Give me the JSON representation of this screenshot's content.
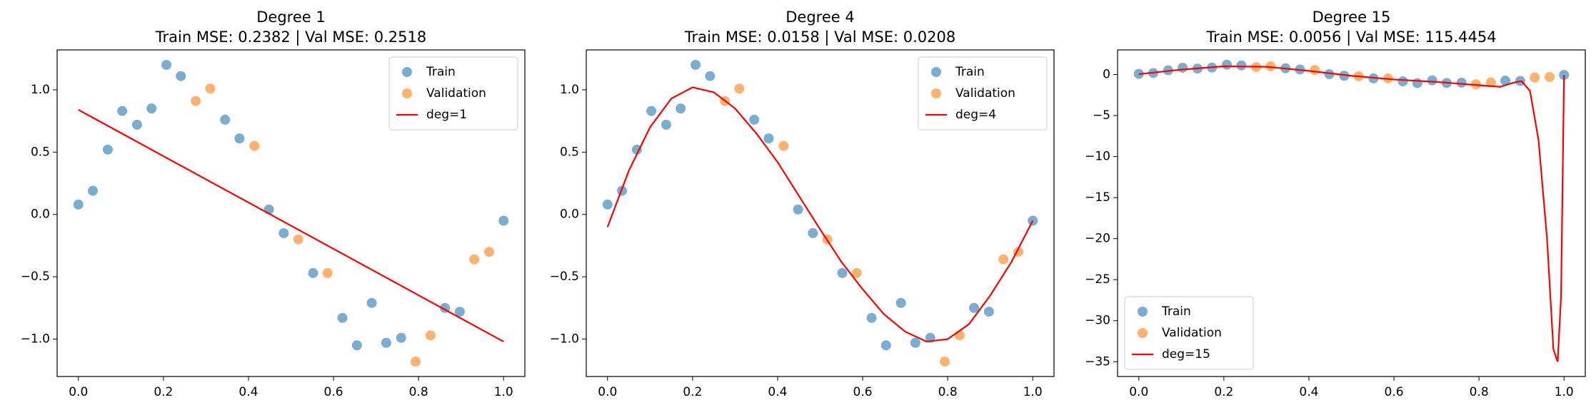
{
  "chart_data": [
    {
      "type": "scatter",
      "title": "Degree 1",
      "subtitle": "Train MSE: 0.2382 | Val MSE: 0.2518",
      "legend": "upper right",
      "xlim": [
        -0.05,
        1.05
      ],
      "ylim": [
        -1.3,
        1.32
      ],
      "xticks": [
        {
          "value": 0,
          "label": "0.0"
        },
        {
          "value": 0.2,
          "label": "0.2"
        },
        {
          "value": 0.4,
          "label": "0.4"
        },
        {
          "value": 0.6,
          "label": "0.6"
        },
        {
          "value": 0.8,
          "label": "0.8"
        },
        {
          "value": 1,
          "label": "1.0"
        }
      ],
      "yticks": [
        {
          "value": -1,
          "label": "−1.0"
        },
        {
          "value": -0.5,
          "label": "−0.5"
        },
        {
          "value": 0,
          "label": "0.0"
        },
        {
          "value": 0.5,
          "label": "0.5"
        },
        {
          "value": 1,
          "label": "1.0"
        }
      ],
      "series": [
        {
          "name": "Train",
          "type": "scatter",
          "color": "#1f77b4",
          "x": [
            0,
            0.034,
            0.069,
            0.103,
            0.138,
            0.172,
            0.207,
            0.241,
            0.345,
            0.379,
            0.448,
            0.483,
            0.552,
            0.621,
            0.655,
            0.69,
            0.724,
            0.759,
            0.862,
            0.897,
            1
          ],
          "values": [
            0.08,
            0.19,
            0.52,
            0.83,
            0.72,
            0.85,
            1.2,
            1.11,
            0.76,
            0.61,
            0.04,
            -0.15,
            -0.47,
            -0.83,
            -1.05,
            -0.71,
            -1.03,
            -0.99,
            -0.75,
            -0.78,
            -0.05
          ]
        },
        {
          "name": "Validation",
          "type": "scatter",
          "color": "#ff7f0e",
          "x": [
            0.276,
            0.31,
            0.414,
            0.517,
            0.586,
            0.793,
            0.828,
            0.931,
            0.966
          ],
          "values": [
            0.91,
            1.01,
            0.55,
            -0.2,
            -0.47,
            -1.18,
            -0.97,
            -0.36,
            -0.3
          ]
        },
        {
          "name": "deg=1",
          "type": "line",
          "color": "#ff0000",
          "x": [
            0,
            1
          ],
          "values": [
            0.84,
            -1.02
          ]
        }
      ]
    },
    {
      "type": "scatter",
      "title": "Degree 4",
      "subtitle": "Train MSE: 0.0158 | Val MSE: 0.0208",
      "legend": "upper right",
      "xlim": [
        -0.05,
        1.05
      ],
      "ylim": [
        -1.3,
        1.32
      ],
      "xticks": [
        {
          "value": 0,
          "label": "0.0"
        },
        {
          "value": 0.2,
          "label": "0.2"
        },
        {
          "value": 0.4,
          "label": "0.4"
        },
        {
          "value": 0.6,
          "label": "0.6"
        },
        {
          "value": 0.8,
          "label": "0.8"
        },
        {
          "value": 1,
          "label": "1.0"
        }
      ],
      "yticks": [
        {
          "value": -1,
          "label": "−1.0"
        },
        {
          "value": -0.5,
          "label": "−0.5"
        },
        {
          "value": 0,
          "label": "0.0"
        },
        {
          "value": 0.5,
          "label": "0.5"
        },
        {
          "value": 1,
          "label": "1.0"
        }
      ],
      "series": [
        {
          "name": "Train",
          "type": "scatter",
          "color": "#1f77b4",
          "x": [
            0,
            0.034,
            0.069,
            0.103,
            0.138,
            0.172,
            0.207,
            0.241,
            0.345,
            0.379,
            0.448,
            0.483,
            0.552,
            0.621,
            0.655,
            0.69,
            0.724,
            0.759,
            0.862,
            0.897,
            1
          ],
          "values": [
            0.08,
            0.19,
            0.52,
            0.83,
            0.72,
            0.85,
            1.2,
            1.11,
            0.76,
            0.61,
            0.04,
            -0.15,
            -0.47,
            -0.83,
            -1.05,
            -0.71,
            -1.03,
            -0.99,
            -0.75,
            -0.78,
            -0.05
          ]
        },
        {
          "name": "Validation",
          "type": "scatter",
          "color": "#ff7f0e",
          "x": [
            0.276,
            0.31,
            0.414,
            0.517,
            0.586,
            0.793,
            0.828,
            0.931,
            0.966
          ],
          "values": [
            0.91,
            1.01,
            0.55,
            -0.2,
            -0.47,
            -1.18,
            -0.97,
            -0.36,
            -0.3
          ]
        },
        {
          "name": "deg=4",
          "type": "line",
          "color": "#ff0000",
          "x": [
            0,
            0.05,
            0.1,
            0.15,
            0.2,
            0.25,
            0.3,
            0.35,
            0.4,
            0.45,
            0.5,
            0.55,
            0.6,
            0.65,
            0.7,
            0.75,
            0.8,
            0.85,
            0.9,
            0.95,
            1
          ],
          "values": [
            -0.1,
            0.35,
            0.7,
            0.93,
            1.02,
            0.98,
            0.85,
            0.65,
            0.42,
            0.15,
            -0.12,
            -0.38,
            -0.6,
            -0.8,
            -0.94,
            -1.02,
            -1.0,
            -0.88,
            -0.65,
            -0.38,
            -0.05
          ]
        }
      ]
    },
    {
      "type": "scatter",
      "title": "Degree 15",
      "subtitle": "Train MSE: 0.0056 | Val MSE: 115.4454",
      "legend": "lower left",
      "xlim": [
        -0.05,
        1.05
      ],
      "ylim": [
        -36.8,
        3.0
      ],
      "xticks": [
        {
          "value": 0,
          "label": "0.0"
        },
        {
          "value": 0.2,
          "label": "0.2"
        },
        {
          "value": 0.4,
          "label": "0.4"
        },
        {
          "value": 0.6,
          "label": "0.6"
        },
        {
          "value": 0.8,
          "label": "0.8"
        },
        {
          "value": 1,
          "label": "1.0"
        }
      ],
      "yticks": [
        {
          "value": -35,
          "label": "−35"
        },
        {
          "value": -30,
          "label": "−30"
        },
        {
          "value": -25,
          "label": "−25"
        },
        {
          "value": -20,
          "label": "−20"
        },
        {
          "value": -15,
          "label": "−15"
        },
        {
          "value": -10,
          "label": "−10"
        },
        {
          "value": -5,
          "label": "−5"
        },
        0
      ],
      "series": [
        {
          "name": "Train",
          "type": "scatter",
          "color": "#1f77b4",
          "x": [
            0,
            0.034,
            0.069,
            0.103,
            0.138,
            0.172,
            0.207,
            0.241,
            0.345,
            0.379,
            0.448,
            0.483,
            0.552,
            0.621,
            0.655,
            0.69,
            0.724,
            0.759,
            0.862,
            0.897,
            1
          ],
          "values": [
            0.08,
            0.19,
            0.52,
            0.83,
            0.72,
            0.85,
            1.2,
            1.11,
            0.76,
            0.61,
            0.04,
            -0.15,
            -0.47,
            -0.83,
            -1.05,
            -0.71,
            -1.03,
            -0.99,
            -0.75,
            -0.78,
            -0.05
          ]
        },
        {
          "name": "Validation",
          "type": "scatter",
          "color": "#ff7f0e",
          "x": [
            0.276,
            0.31,
            0.414,
            0.517,
            0.586,
            0.793,
            0.828,
            0.931,
            0.966
          ],
          "values": [
            0.91,
            1.01,
            0.55,
            -0.2,
            -0.47,
            -1.18,
            -0.97,
            -0.36,
            -0.3
          ]
        },
        {
          "name": "deg=15",
          "type": "line",
          "color": "#ff0000",
          "x": [
            0,
            0.1,
            0.2,
            0.3,
            0.4,
            0.5,
            0.6,
            0.7,
            0.8,
            0.85,
            0.88,
            0.9,
            0.92,
            0.94,
            0.96,
            0.975,
            0.985,
            0.993,
            1
          ],
          "values": [
            0.05,
            0.6,
            1.0,
            0.95,
            0.45,
            -0.15,
            -0.6,
            -0.9,
            -1.3,
            -1.5,
            -1.0,
            -0.8,
            -2,
            -8,
            -20,
            -33.5,
            -35,
            -27,
            -0.05
          ]
        }
      ]
    }
  ]
}
